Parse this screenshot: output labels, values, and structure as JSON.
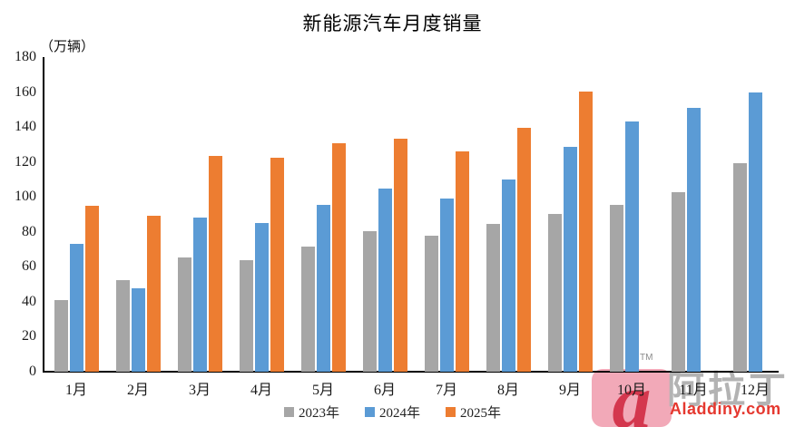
{
  "watermark": {
    "tm": "TM",
    "logo_letter": "a",
    "cn": "阿拉丁",
    "en": "Aladdiny.com",
    "logo_red": "#D4374E",
    "logo_pink": "#F2A9B8",
    "cn_gray": "#B3B3B3",
    "en_red": "#E5382F"
  },
  "colors": {
    "series_2023": "#A6A6A6",
    "series_2024": "#5B9BD5",
    "series_2025": "#ED7D31",
    "axis": "#000000",
    "background": "#FFFFFF"
  },
  "chart_data": {
    "type": "bar",
    "title": "新能源汽车月度销量",
    "ylabel": "（万辆）",
    "xlabel": "",
    "categories": [
      "1月",
      "2月",
      "3月",
      "4月",
      "5月",
      "6月",
      "7月",
      "8月",
      "9月",
      "10月",
      "11月",
      "12月"
    ],
    "series": [
      {
        "name": "2023年",
        "color": "#A6A6A6",
        "values": [
          40.8,
          52.5,
          65.3,
          63.6,
          71.7,
          80.6,
          78.0,
          84.6,
          90.4,
          95.6,
          102.6,
          119.1
        ]
      },
      {
        "name": "2024年",
        "color": "#5B9BD5",
        "values": [
          72.9,
          47.7,
          88.3,
          85.0,
          95.5,
          104.9,
          99.1,
          109.9,
          128.7,
          143.0,
          151.2,
          159.6
        ]
      },
      {
        "name": "2025年",
        "color": "#ED7D31",
        "values": [
          94.9,
          89.2,
          123.7,
          122.6,
          130.7,
          133.3,
          126.2,
          139.5,
          160.5,
          null,
          null,
          null
        ]
      }
    ],
    "ylim": [
      0,
      180
    ],
    "ytick_step": 20,
    "grid": false,
    "legend_position": "bottom"
  }
}
